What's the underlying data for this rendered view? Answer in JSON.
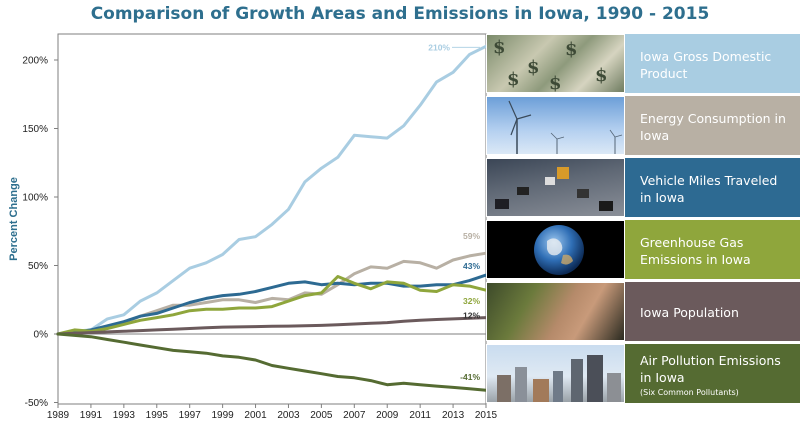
{
  "title": "Comparison of Growth Areas and Emissions in Iowa, 1990 - 2015",
  "colors": {
    "title": "#2e6f8e",
    "gdp": "#a9cde2",
    "energy": "#b8b0a4",
    "vmt": "#2d6a92",
    "ghg": "#8fa63c",
    "population": "#6b5a5c",
    "air": "#556b32"
  },
  "legend": [
    {
      "key": "gdp",
      "label": "Iowa Gross Domestic Product",
      "sub": "",
      "photo": "money",
      "bg": "#a9cde2"
    },
    {
      "key": "energy",
      "label": "Energy Consumption in Iowa",
      "sub": "",
      "photo": "wind-turbines",
      "bg": "#b8b0a4"
    },
    {
      "key": "vmt",
      "label": "Vehicle Miles Traveled in Iowa",
      "sub": "",
      "photo": "highway-traffic",
      "bg": "#2d6a92"
    },
    {
      "key": "ghg",
      "label": "Greenhouse Gas Emissions in Iowa",
      "sub": "",
      "photo": "earth",
      "bg": "#8fa63c"
    },
    {
      "key": "population",
      "label": "Iowa Population",
      "sub": "",
      "photo": "child",
      "bg": "#6b5a5c"
    },
    {
      "key": "air",
      "label": "Air Pollution Emissions in Iowa",
      "sub": "(Six Common Pollutants)",
      "photo": "city-skyline",
      "bg": "#556b32"
    }
  ],
  "chart_data": {
    "type": "line",
    "title": "Comparison of Growth Areas and Emissions in Iowa, 1990 - 2015",
    "xlabel": "",
    "ylabel": "Percent Change",
    "xlim": [
      1989,
      2015
    ],
    "ylim": [
      -50,
      220
    ],
    "xticks": [
      1989,
      1991,
      1993,
      1995,
      1997,
      1999,
      2001,
      2003,
      2005,
      2007,
      2009,
      2011,
      2013,
      2015
    ],
    "yticks": [
      -50,
      0,
      50,
      100,
      150,
      200
    ],
    "ytick_labels": [
      "-50%",
      "0%",
      "50%",
      "100%",
      "150%",
      "200%"
    ],
    "x": [
      1989,
      1990,
      1991,
      1992,
      1993,
      1994,
      1995,
      1996,
      1997,
      1998,
      1999,
      2000,
      2001,
      2002,
      2003,
      2004,
      2005,
      2006,
      2007,
      2008,
      2009,
      2010,
      2011,
      2012,
      2013,
      2014,
      2015
    ],
    "series": [
      {
        "key": "gdp",
        "name": "Iowa Gross Domestic Product",
        "end_label": "210%",
        "color": "#a9cde2",
        "values": [
          0,
          2,
          3,
          11,
          14,
          24,
          30,
          39,
          48,
          52,
          58,
          69,
          71,
          80,
          91,
          111,
          121,
          129,
          145,
          144,
          143,
          152,
          167,
          184,
          191,
          204,
          210
        ]
      },
      {
        "key": "energy",
        "name": "Energy Consumption in Iowa",
        "end_label": "59%",
        "color": "#b8b0a4",
        "values": [
          0,
          1,
          2,
          5,
          8,
          13,
          17,
          21,
          21,
          23,
          25,
          25,
          23,
          26,
          25,
          30,
          29,
          36,
          44,
          49,
          48,
          53,
          52,
          48,
          54,
          57,
          59
        ]
      },
      {
        "key": "vmt",
        "name": "Vehicle Miles Traveled in Iowa",
        "end_label": "43%",
        "color": "#2d6a92",
        "values": [
          0,
          1,
          3,
          6,
          9,
          13,
          15,
          19,
          23,
          26,
          28,
          29,
          31,
          34,
          37,
          38,
          36,
          37,
          36,
          37,
          37,
          35,
          35,
          36,
          36,
          39,
          43
        ]
      },
      {
        "key": "ghg",
        "name": "Greenhouse Gas Emissions in Iowa",
        "end_label": "32%",
        "color": "#8fa63c",
        "values": [
          0,
          3,
          2,
          4,
          7,
          10,
          12,
          14,
          17,
          18,
          18,
          19,
          19,
          20,
          24,
          28,
          30,
          42,
          37,
          33,
          38,
          37,
          32,
          31,
          36,
          35,
          32
        ]
      },
      {
        "key": "population",
        "name": "Iowa Population",
        "end_label": "12%",
        "color": "#6b5a5c",
        "values": [
          0,
          0.5,
          1,
          1.5,
          2,
          2.5,
          3,
          3.5,
          4,
          4.5,
          5,
          5.2,
          5.4,
          5.6,
          5.8,
          6,
          6.3,
          6.8,
          7.3,
          7.8,
          8.3,
          9.3,
          10,
          10.6,
          11,
          11.5,
          12
        ]
      },
      {
        "key": "air",
        "name": "Air Pollution Emissions in Iowa",
        "end_label": "-41%",
        "color": "#556b32",
        "values": [
          0,
          -1,
          -2,
          -4,
          -6,
          -8,
          -10,
          -12,
          -13,
          -14,
          -16,
          -17,
          -19,
          -23,
          -25,
          -27,
          -29,
          -31,
          -32,
          -34,
          -37,
          -36,
          -37,
          -38,
          -39,
          -40,
          -41
        ]
      }
    ]
  }
}
